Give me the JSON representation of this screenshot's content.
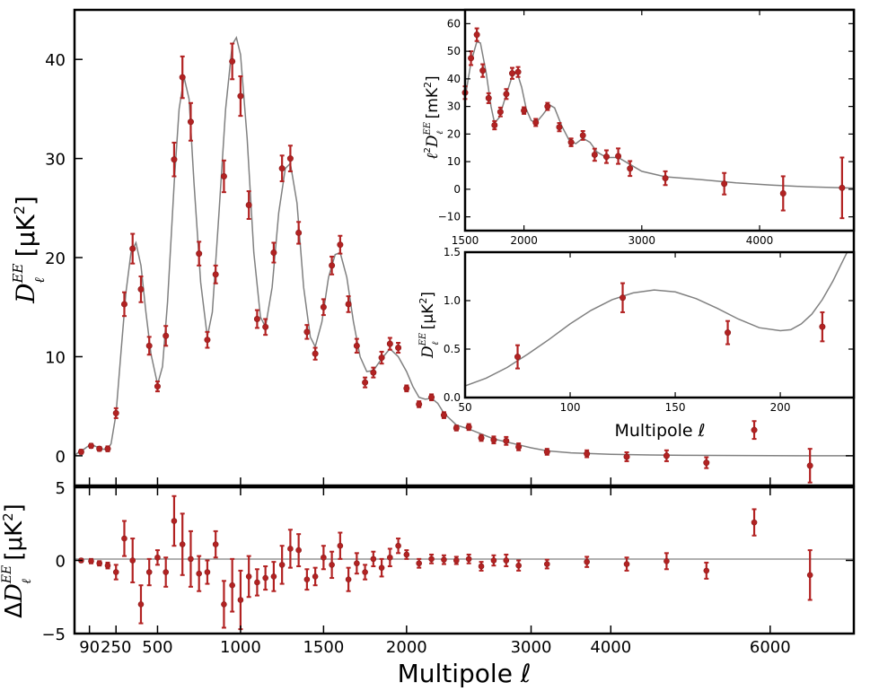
{
  "colors": {
    "points": "#b22222",
    "model": "#808080",
    "axes": "#000000"
  },
  "chart_data": [
    {
      "id": "main",
      "type": "scatter",
      "title": "",
      "xlabel": "Multipole ℓ",
      "ylabel": "D_ℓ^EE [μK²]",
      "ylim": [
        -3,
        45
      ],
      "xticks": [
        90,
        250,
        500,
        1000,
        1500,
        2000,
        3000,
        4000,
        6000
      ],
      "xtick_labels": [
        "90",
        "250",
        "500",
        "1000",
        "1500",
        "2000",
        "3000",
        "4000",
        "6000"
      ],
      "yticks": [
        0,
        10,
        20,
        30,
        40
      ],
      "ytick_labels": [
        "0",
        "10",
        "20",
        "30",
        "40"
      ],
      "points": [
        [
          40,
          0.4,
          0.2
        ],
        [
          100,
          1.0,
          0.2
        ],
        [
          150,
          0.7,
          0.2
        ],
        [
          200,
          0.7,
          0.25
        ],
        [
          250,
          4.3,
          0.5
        ],
        [
          300,
          15.3,
          1.2
        ],
        [
          350,
          20.9,
          1.5
        ],
        [
          400,
          16.8,
          1.3
        ],
        [
          450,
          11.1,
          0.9
        ],
        [
          500,
          7.0,
          0.5
        ],
        [
          550,
          12.1,
          1.0
        ],
        [
          600,
          29.9,
          1.7
        ],
        [
          650,
          38.2,
          2.1
        ],
        [
          700,
          33.7,
          1.9
        ],
        [
          750,
          20.4,
          1.2
        ],
        [
          800,
          11.7,
          0.8
        ],
        [
          850,
          18.3,
          0.9
        ],
        [
          900,
          28.2,
          1.6
        ],
        [
          950,
          39.8,
          1.8
        ],
        [
          1000,
          36.3,
          2.0
        ],
        [
          1050,
          25.3,
          1.4
        ],
        [
          1100,
          13.8,
          0.9
        ],
        [
          1150,
          13.0,
          0.8
        ],
        [
          1200,
          20.5,
          1.0
        ],
        [
          1250,
          29.0,
          1.3
        ],
        [
          1300,
          30.0,
          1.3
        ],
        [
          1350,
          22.5,
          1.1
        ],
        [
          1400,
          12.5,
          0.7
        ],
        [
          1450,
          10.3,
          0.6
        ],
        [
          1500,
          15.0,
          0.8
        ],
        [
          1550,
          19.2,
          0.9
        ],
        [
          1600,
          21.3,
          0.9
        ],
        [
          1650,
          15.3,
          0.8
        ],
        [
          1700,
          11.1,
          0.7
        ],
        [
          1750,
          7.4,
          0.5
        ],
        [
          1800,
          8.4,
          0.5
        ],
        [
          1850,
          9.9,
          0.6
        ],
        [
          1900,
          11.3,
          0.6
        ],
        [
          1950,
          10.9,
          0.5
        ],
        [
          2000,
          6.8,
          0.3
        ],
        [
          2100,
          5.2,
          0.3
        ],
        [
          2200,
          5.9,
          0.3
        ],
        [
          2300,
          4.1,
          0.3
        ],
        [
          2400,
          2.8,
          0.25
        ],
        [
          2500,
          2.9,
          0.3
        ],
        [
          2600,
          1.8,
          0.3
        ],
        [
          2700,
          1.6,
          0.35
        ],
        [
          2800,
          1.5,
          0.4
        ],
        [
          2900,
          0.9,
          0.35
        ],
        [
          3200,
          0.4,
          0.3
        ],
        [
          3700,
          0.2,
          0.35
        ],
        [
          4200,
          -0.1,
          0.45
        ],
        [
          4700,
          0.0,
          0.55
        ],
        [
          5200,
          -0.7,
          0.55
        ],
        [
          5800,
          2.6,
          0.9
        ],
        [
          6500,
          -1.0,
          1.7
        ]
      ],
      "model_curve": [
        [
          2,
          0.05
        ],
        [
          20,
          0.3
        ],
        [
          40,
          0.45
        ],
        [
          60,
          0.7
        ],
        [
          80,
          0.95
        ],
        [
          100,
          1.05
        ],
        [
          120,
          1.0
        ],
        [
          140,
          0.85
        ],
        [
          160,
          0.7
        ],
        [
          180,
          0.65
        ],
        [
          200,
          0.7
        ],
        [
          220,
          1.2
        ],
        [
          250,
          4.2
        ],
        [
          280,
          10.5
        ],
        [
          310,
          16.5
        ],
        [
          340,
          20.5
        ],
        [
          370,
          21.5
        ],
        [
          400,
          19.2
        ],
        [
          430,
          14.5
        ],
        [
          460,
          10.3
        ],
        [
          500,
          7.2
        ],
        [
          530,
          9.0
        ],
        [
          560,
          15.5
        ],
        [
          600,
          27.5
        ],
        [
          630,
          35.0
        ],
        [
          660,
          38.2
        ],
        [
          690,
          36.0
        ],
        [
          720,
          27.5
        ],
        [
          760,
          17.5
        ],
        [
          800,
          12.0
        ],
        [
          830,
          14.5
        ],
        [
          870,
          24.5
        ],
        [
          910,
          35.0
        ],
        [
          950,
          41.5
        ],
        [
          975,
          42.2
        ],
        [
          1000,
          40.5
        ],
        [
          1040,
          32.0
        ],
        [
          1080,
          20.5
        ],
        [
          1120,
          14.0
        ],
        [
          1150,
          13.0
        ],
        [
          1190,
          17.0
        ],
        [
          1230,
          24.5
        ],
        [
          1270,
          29.0
        ],
        [
          1300,
          29.5
        ],
        [
          1340,
          25.5
        ],
        [
          1380,
          17.0
        ],
        [
          1420,
          12.0
        ],
        [
          1450,
          11.0
        ],
        [
          1490,
          13.5
        ],
        [
          1530,
          18.0
        ],
        [
          1570,
          20.3
        ],
        [
          1600,
          20.5
        ],
        [
          1640,
          18.0
        ],
        [
          1680,
          13.5
        ],
        [
          1720,
          10.0
        ],
        [
          1760,
          8.5
        ],
        [
          1800,
          8.6
        ],
        [
          1850,
          9.8
        ],
        [
          1900,
          10.8
        ],
        [
          1950,
          10.0
        ],
        [
          2000,
          8.5
        ],
        [
          2050,
          7.0
        ],
        [
          2100,
          5.9
        ],
        [
          2150,
          5.7
        ],
        [
          2200,
          5.8
        ],
        [
          2250,
          5.3
        ],
        [
          2300,
          4.3
        ],
        [
          2400,
          3.1
        ],
        [
          2500,
          2.7
        ],
        [
          2600,
          2.2
        ],
        [
          2700,
          1.7
        ],
        [
          2800,
          1.4
        ],
        [
          2900,
          1.1
        ],
        [
          3000,
          0.8
        ],
        [
          3200,
          0.5
        ],
        [
          3500,
          0.3
        ],
        [
          4000,
          0.15
        ],
        [
          4500,
          0.08
        ],
        [
          5000,
          0.04
        ],
        [
          6000,
          0.01
        ],
        [
          7000,
          0.0
        ]
      ]
    },
    {
      "id": "residual",
      "type": "scatter",
      "title": "",
      "xlabel": "Multipole ℓ",
      "ylabel": "ΔD_ℓ^EE [μK²]",
      "ylim": [
        -5,
        5
      ],
      "yticks": [
        -5,
        0,
        5
      ],
      "ytick_labels": [
        "−5",
        "0",
        "5"
      ],
      "points": [
        [
          40,
          0.0,
          0.1
        ],
        [
          100,
          -0.05,
          0.15
        ],
        [
          150,
          -0.2,
          0.15
        ],
        [
          200,
          -0.35,
          0.2
        ],
        [
          250,
          -0.8,
          0.5
        ],
        [
          300,
          1.5,
          1.2
        ],
        [
          350,
          0.0,
          1.5
        ],
        [
          400,
          -3.0,
          1.3
        ],
        [
          450,
          -0.8,
          0.9
        ],
        [
          500,
          0.2,
          0.5
        ],
        [
          550,
          -0.8,
          1.0
        ],
        [
          600,
          2.7,
          1.7
        ],
        [
          650,
          1.1,
          2.1
        ],
        [
          700,
          0.1,
          1.9
        ],
        [
          750,
          -0.9,
          1.2
        ],
        [
          800,
          -0.8,
          0.8
        ],
        [
          850,
          1.1,
          0.9
        ],
        [
          900,
          -3.0,
          1.6
        ],
        [
          950,
          -1.7,
          1.8
        ],
        [
          1000,
          -2.7,
          2.0
        ],
        [
          1050,
          -1.1,
          1.4
        ],
        [
          1100,
          -1.5,
          0.9
        ],
        [
          1150,
          -1.2,
          0.8
        ],
        [
          1200,
          -1.1,
          1.0
        ],
        [
          1250,
          -0.3,
          1.3
        ],
        [
          1300,
          0.8,
          1.3
        ],
        [
          1350,
          0.7,
          1.1
        ],
        [
          1400,
          -1.3,
          0.7
        ],
        [
          1450,
          -1.1,
          0.6
        ],
        [
          1500,
          0.2,
          0.8
        ],
        [
          1550,
          -0.3,
          0.9
        ],
        [
          1600,
          1.0,
          0.9
        ],
        [
          1650,
          -1.3,
          0.8
        ],
        [
          1700,
          -0.2,
          0.7
        ],
        [
          1750,
          -0.8,
          0.5
        ],
        [
          1800,
          0.1,
          0.5
        ],
        [
          1850,
          -0.5,
          0.6
        ],
        [
          1900,
          0.2,
          0.6
        ],
        [
          1950,
          1.0,
          0.5
        ],
        [
          2000,
          0.4,
          0.3
        ],
        [
          2100,
          -0.2,
          0.3
        ],
        [
          2200,
          0.1,
          0.3
        ],
        [
          2300,
          0.05,
          0.3
        ],
        [
          2400,
          0.0,
          0.25
        ],
        [
          2500,
          0.1,
          0.3
        ],
        [
          2600,
          -0.4,
          0.3
        ],
        [
          2700,
          0.0,
          0.35
        ],
        [
          2800,
          0.0,
          0.4
        ],
        [
          2900,
          -0.35,
          0.35
        ],
        [
          3200,
          -0.25,
          0.3
        ],
        [
          3700,
          -0.1,
          0.35
        ],
        [
          4200,
          -0.25,
          0.45
        ],
        [
          4700,
          -0.05,
          0.55
        ],
        [
          5200,
          -0.7,
          0.55
        ],
        [
          5800,
          2.6,
          0.9
        ],
        [
          6500,
          -1.0,
          1.7
        ]
      ]
    },
    {
      "id": "inset-high-l",
      "type": "scatter",
      "title": "",
      "xlabel": "",
      "ylabel": "ℓ²D_ℓ^EE [mK²]",
      "xlim": [
        1500,
        4800
      ],
      "ylim": [
        -15,
        65
      ],
      "xticks": [
        1500,
        2000,
        3000,
        4000
      ],
      "xtick_labels": [
        "1500",
        "2000",
        "3000",
        "4000"
      ],
      "yticks": [
        -10,
        0,
        10,
        20,
        30,
        40,
        50,
        60
      ],
      "ytick_labels": [
        "−10",
        "0",
        "10",
        "20",
        "30",
        "40",
        "50",
        "60"
      ],
      "points": [
        [
          1500,
          35,
          2.3
        ],
        [
          1550,
          47.5,
          2.5
        ],
        [
          1600,
          56,
          2.3
        ],
        [
          1650,
          43,
          2.3
        ],
        [
          1700,
          33,
          1.8
        ],
        [
          1750,
          23.2,
          1.5
        ],
        [
          1800,
          28,
          1.6
        ],
        [
          1850,
          34.5,
          1.8
        ],
        [
          1900,
          42,
          2.0
        ],
        [
          1950,
          42.5,
          1.8
        ],
        [
          2000,
          28.5,
          1.2
        ],
        [
          2100,
          24.2,
          1.3
        ],
        [
          2200,
          30,
          1.3
        ],
        [
          2300,
          22.5,
          1.5
        ],
        [
          2400,
          17,
          1.4
        ],
        [
          2500,
          19.5,
          1.6
        ],
        [
          2600,
          12.5,
          2.2
        ],
        [
          2700,
          11.8,
          2.3
        ],
        [
          2800,
          12,
          2.8
        ],
        [
          2900,
          7.5,
          2.7
        ],
        [
          3200,
          4,
          2.5
        ],
        [
          3700,
          2,
          3.9
        ],
        [
          4200,
          -1.5,
          6.2
        ],
        [
          4700,
          0.5,
          11
        ]
      ],
      "model_curve": [
        [
          1500,
          33
        ],
        [
          1550,
          46
        ],
        [
          1600,
          53.5
        ],
        [
          1630,
          53
        ],
        [
          1680,
          42
        ],
        [
          1720,
          30
        ],
        [
          1750,
          24
        ],
        [
          1790,
          26
        ],
        [
          1840,
          33
        ],
        [
          1900,
          41
        ],
        [
          1940,
          42.5
        ],
        [
          1980,
          37
        ],
        [
          2020,
          29
        ],
        [
          2060,
          25
        ],
        [
          2100,
          24
        ],
        [
          2160,
          27
        ],
        [
          2220,
          30.5
        ],
        [
          2260,
          29.5
        ],
        [
          2320,
          23
        ],
        [
          2380,
          18
        ],
        [
          2440,
          16.5
        ],
        [
          2500,
          18.5
        ],
        [
          2560,
          17
        ],
        [
          2620,
          13.5
        ],
        [
          2700,
          11.5
        ],
        [
          2800,
          11.5
        ],
        [
          2900,
          9
        ],
        [
          3000,
          6.5
        ],
        [
          3200,
          4.5
        ],
        [
          3500,
          3.5
        ],
        [
          3800,
          2.3
        ],
        [
          4100,
          1.5
        ],
        [
          4400,
          0.9
        ],
        [
          4800,
          0.4
        ]
      ]
    },
    {
      "id": "inset-low-l",
      "type": "scatter",
      "title": "",
      "xlabel": "Multipole ℓ",
      "ylabel": "D_ℓ^EE [μK²]",
      "xlim": [
        50,
        235
      ],
      "ylim": [
        0,
        1.5
      ],
      "xticks": [
        50,
        100,
        150,
        200
      ],
      "xtick_labels": [
        "50",
        "100",
        "150",
        "200"
      ],
      "yticks": [
        0.0,
        0.5,
        1.0,
        1.5
      ],
      "ytick_labels": [
        "0.0",
        "0.5",
        "1.0",
        "1.5"
      ],
      "points": [
        [
          75,
          0.42,
          0.12
        ],
        [
          125,
          1.03,
          0.15
        ],
        [
          175,
          0.67,
          0.12
        ],
        [
          220,
          0.73,
          0.15
        ]
      ],
      "model_curve": [
        [
          50,
          0.12
        ],
        [
          60,
          0.2
        ],
        [
          70,
          0.31
        ],
        [
          80,
          0.45
        ],
        [
          90,
          0.6
        ],
        [
          100,
          0.76
        ],
        [
          110,
          0.9
        ],
        [
          120,
          1.01
        ],
        [
          130,
          1.08
        ],
        [
          140,
          1.11
        ],
        [
          150,
          1.09
        ],
        [
          160,
          1.02
        ],
        [
          170,
          0.92
        ],
        [
          180,
          0.81
        ],
        [
          190,
          0.72
        ],
        [
          200,
          0.69
        ],
        [
          205,
          0.7
        ],
        [
          210,
          0.76
        ],
        [
          215,
          0.86
        ],
        [
          220,
          1.01
        ],
        [
          225,
          1.2
        ],
        [
          230,
          1.42
        ],
        [
          233,
          1.55
        ]
      ]
    }
  ]
}
